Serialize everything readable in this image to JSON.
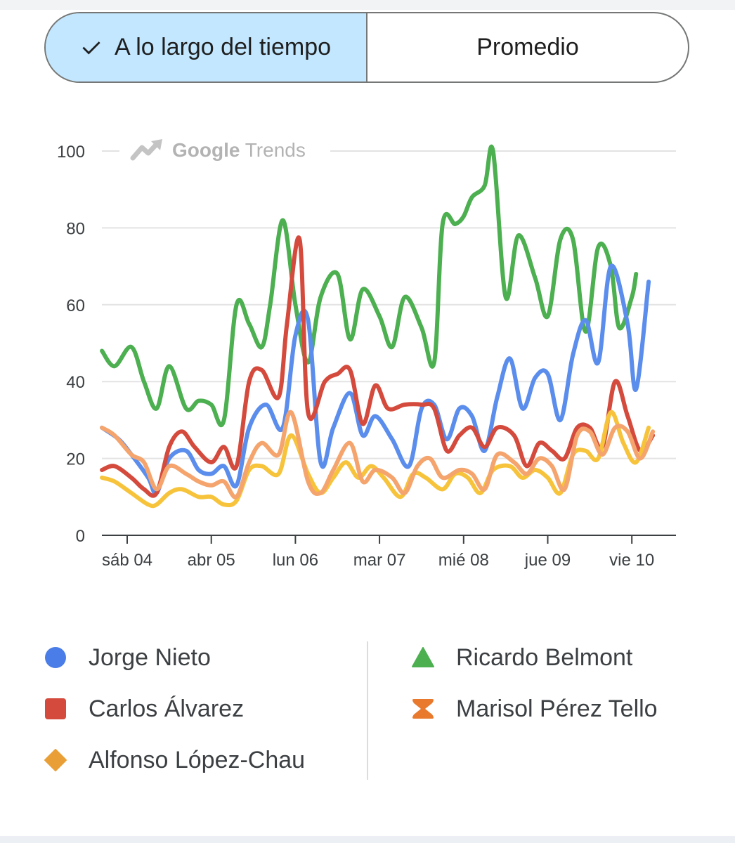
{
  "toggle": {
    "over_time_label": "A lo largo del tiempo",
    "average_label": "Promedio",
    "selected": "A lo largo del tiempo"
  },
  "brand": {
    "google": "Google",
    "trends": "Trends"
  },
  "chart_data": {
    "type": "line",
    "title": "",
    "xlabel": "",
    "ylabel": "",
    "ylim": [
      0,
      100
    ],
    "yticks": [
      0,
      20,
      40,
      60,
      80,
      100
    ],
    "grid": true,
    "legend_position": "bottom",
    "x_tick_labels": [
      "sáb 04",
      "abr 05",
      "lun 06",
      "mar 07",
      "mié 08",
      "jue 09",
      "vie 10"
    ],
    "x_range": [
      -0.3,
      6.55
    ],
    "series": [
      {
        "name": "Ricardo Belmont",
        "color": "#4caf50",
        "marker": "triangle",
        "points": [
          [
            -0.3,
            48
          ],
          [
            -0.15,
            44
          ],
          [
            0.05,
            49
          ],
          [
            0.2,
            40
          ],
          [
            0.35,
            33
          ],
          [
            0.5,
            44
          ],
          [
            0.7,
            33
          ],
          [
            0.85,
            35
          ],
          [
            1.0,
            34
          ],
          [
            1.15,
            30
          ],
          [
            1.3,
            60
          ],
          [
            1.45,
            55
          ],
          [
            1.6,
            49
          ],
          [
            1.7,
            60
          ],
          [
            1.85,
            82
          ],
          [
            2.0,
            60
          ],
          [
            2.15,
            45
          ],
          [
            2.3,
            62
          ],
          [
            2.5,
            68
          ],
          [
            2.65,
            51
          ],
          [
            2.8,
            64
          ],
          [
            3.0,
            57
          ],
          [
            3.15,
            49
          ],
          [
            3.3,
            62
          ],
          [
            3.5,
            54
          ],
          [
            3.65,
            45
          ],
          [
            3.75,
            81
          ],
          [
            3.9,
            81
          ],
          [
            4.0,
            83
          ],
          [
            4.1,
            88
          ],
          [
            4.25,
            91
          ],
          [
            4.35,
            100
          ],
          [
            4.5,
            62
          ],
          [
            4.65,
            78
          ],
          [
            4.85,
            67
          ],
          [
            5.0,
            57
          ],
          [
            5.15,
            77
          ],
          [
            5.3,
            77
          ],
          [
            5.45,
            53
          ],
          [
            5.6,
            75
          ],
          [
            5.75,
            70
          ],
          [
            5.85,
            54
          ],
          [
            6.0,
            62
          ],
          [
            6.05,
            68
          ]
        ]
      },
      {
        "name": "Jorge Nieto",
        "color": "#5b8ded",
        "marker": "circle",
        "points": [
          [
            -0.3,
            28
          ],
          [
            -0.1,
            25
          ],
          [
            0.05,
            21
          ],
          [
            0.25,
            15
          ],
          [
            0.35,
            11
          ],
          [
            0.5,
            20
          ],
          [
            0.7,
            22
          ],
          [
            0.85,
            17
          ],
          [
            1.0,
            16
          ],
          [
            1.15,
            18
          ],
          [
            1.3,
            13
          ],
          [
            1.45,
            28
          ],
          [
            1.65,
            34
          ],
          [
            1.85,
            28
          ],
          [
            2.0,
            52
          ],
          [
            2.15,
            56
          ],
          [
            2.3,
            19
          ],
          [
            2.45,
            28
          ],
          [
            2.65,
            37
          ],
          [
            2.8,
            26
          ],
          [
            2.95,
            31
          ],
          [
            3.15,
            25
          ],
          [
            3.35,
            18
          ],
          [
            3.5,
            33
          ],
          [
            3.65,
            34
          ],
          [
            3.8,
            25
          ],
          [
            3.95,
            33
          ],
          [
            4.1,
            31
          ],
          [
            4.25,
            22
          ],
          [
            4.4,
            36
          ],
          [
            4.55,
            46
          ],
          [
            4.7,
            33
          ],
          [
            4.85,
            41
          ],
          [
            5.0,
            42
          ],
          [
            5.15,
            30
          ],
          [
            5.3,
            47
          ],
          [
            5.45,
            56
          ],
          [
            5.6,
            45
          ],
          [
            5.75,
            70
          ],
          [
            5.95,
            55
          ],
          [
            6.05,
            38
          ],
          [
            6.2,
            66
          ]
        ]
      },
      {
        "name": "Carlos Álvarez",
        "color": "#d44a3c",
        "marker": "square",
        "points": [
          [
            -0.3,
            17
          ],
          [
            -0.15,
            18
          ],
          [
            0.05,
            15
          ],
          [
            0.2,
            12
          ],
          [
            0.35,
            11
          ],
          [
            0.5,
            23
          ],
          [
            0.65,
            27
          ],
          [
            0.8,
            23
          ],
          [
            1.0,
            19
          ],
          [
            1.15,
            23
          ],
          [
            1.3,
            18
          ],
          [
            1.45,
            40
          ],
          [
            1.6,
            43
          ],
          [
            1.8,
            36
          ],
          [
            1.9,
            55
          ],
          [
            2.05,
            77
          ],
          [
            2.15,
            32
          ],
          [
            2.35,
            40
          ],
          [
            2.5,
            42
          ],
          [
            2.65,
            43
          ],
          [
            2.8,
            29
          ],
          [
            2.95,
            39
          ],
          [
            3.1,
            33
          ],
          [
            3.3,
            34
          ],
          [
            3.5,
            34
          ],
          [
            3.65,
            33
          ],
          [
            3.8,
            22
          ],
          [
            3.95,
            26
          ],
          [
            4.1,
            28
          ],
          [
            4.25,
            23
          ],
          [
            4.4,
            28
          ],
          [
            4.6,
            26
          ],
          [
            4.75,
            18
          ],
          [
            4.9,
            24
          ],
          [
            5.05,
            22
          ],
          [
            5.2,
            20
          ],
          [
            5.35,
            28
          ],
          [
            5.5,
            28
          ],
          [
            5.65,
            23
          ],
          [
            5.8,
            40
          ],
          [
            5.95,
            31
          ],
          [
            6.1,
            22
          ],
          [
            6.25,
            26
          ]
        ]
      },
      {
        "name": "Alfonso López-Chau",
        "color": "#f6c33b",
        "marker": "diamond",
        "points": [
          [
            -0.3,
            15
          ],
          [
            -0.15,
            14
          ],
          [
            0.05,
            11
          ],
          [
            0.25,
            8
          ],
          [
            0.35,
            8
          ],
          [
            0.5,
            11
          ],
          [
            0.65,
            12
          ],
          [
            0.85,
            10
          ],
          [
            1.0,
            10
          ],
          [
            1.15,
            8
          ],
          [
            1.3,
            9
          ],
          [
            1.45,
            17
          ],
          [
            1.6,
            18
          ],
          [
            1.8,
            16
          ],
          [
            1.95,
            26
          ],
          [
            2.15,
            16
          ],
          [
            2.3,
            11
          ],
          [
            2.45,
            15
          ],
          [
            2.6,
            19
          ],
          [
            2.75,
            15
          ],
          [
            2.9,
            18
          ],
          [
            3.05,
            15
          ],
          [
            3.25,
            10
          ],
          [
            3.4,
            16
          ],
          [
            3.55,
            15
          ],
          [
            3.75,
            12
          ],
          [
            3.9,
            16
          ],
          [
            4.05,
            15
          ],
          [
            4.2,
            11
          ],
          [
            4.35,
            17
          ],
          [
            4.55,
            18
          ],
          [
            4.7,
            15
          ],
          [
            4.85,
            17
          ],
          [
            5.0,
            15
          ],
          [
            5.15,
            11
          ],
          [
            5.3,
            21
          ],
          [
            5.45,
            22
          ],
          [
            5.6,
            20
          ],
          [
            5.75,
            32
          ],
          [
            5.9,
            24
          ],
          [
            6.05,
            19
          ],
          [
            6.2,
            28
          ]
        ]
      },
      {
        "name": "Marisol Pérez Tello",
        "color": "#f4a46c",
        "marker": "hourglass",
        "points": [
          [
            -0.3,
            28
          ],
          [
            -0.15,
            26
          ],
          [
            0.05,
            21
          ],
          [
            0.2,
            19
          ],
          [
            0.35,
            12
          ],
          [
            0.5,
            18
          ],
          [
            0.7,
            16
          ],
          [
            0.85,
            14
          ],
          [
            1.0,
            13
          ],
          [
            1.15,
            14
          ],
          [
            1.3,
            10
          ],
          [
            1.45,
            19
          ],
          [
            1.6,
            24
          ],
          [
            1.8,
            21
          ],
          [
            1.95,
            32
          ],
          [
            2.15,
            14
          ],
          [
            2.3,
            11
          ],
          [
            2.45,
            17
          ],
          [
            2.65,
            24
          ],
          [
            2.8,
            14
          ],
          [
            2.95,
            17
          ],
          [
            3.15,
            15
          ],
          [
            3.3,
            11
          ],
          [
            3.45,
            18
          ],
          [
            3.6,
            20
          ],
          [
            3.75,
            15
          ],
          [
            3.95,
            17
          ],
          [
            4.1,
            16
          ],
          [
            4.25,
            12
          ],
          [
            4.4,
            21
          ],
          [
            4.6,
            19
          ],
          [
            4.75,
            16
          ],
          [
            4.9,
            20
          ],
          [
            5.05,
            18
          ],
          [
            5.2,
            12
          ],
          [
            5.35,
            26
          ],
          [
            5.5,
            27
          ],
          [
            5.65,
            21
          ],
          [
            5.8,
            28
          ],
          [
            5.95,
            27
          ],
          [
            6.1,
            20
          ],
          [
            6.25,
            27
          ]
        ]
      }
    ]
  },
  "legend": {
    "items": [
      {
        "label": "Jorge Nieto"
      },
      {
        "label": "Ricardo Belmont"
      },
      {
        "label": "Carlos Álvarez"
      },
      {
        "label": "Marisol Pérez Tello"
      },
      {
        "label": "Alfonso López-Chau"
      }
    ]
  }
}
